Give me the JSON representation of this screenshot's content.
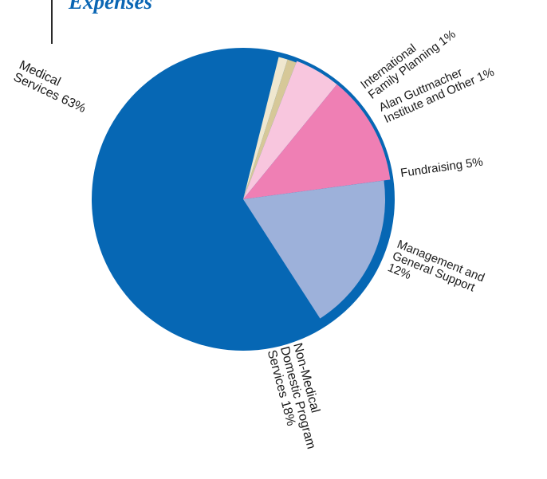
{
  "heading": "Expenses",
  "chart_data": {
    "type": "pie",
    "title": "Expenses",
    "unit": "%",
    "slices": [
      {
        "id": "medical",
        "lines": [
          "Medical",
          "Services 63%"
        ],
        "value": 63,
        "color": "#0667b4"
      },
      {
        "id": "nonmedical",
        "lines": [
          "Non-Medical",
          "Domestic Program",
          "Services 18%"
        ],
        "value": 18,
        "color": "#9db1da"
      },
      {
        "id": "management",
        "lines": [
          "Management and",
          "General Support",
          "12%"
        ],
        "value": 12,
        "color": "#ef7fb4"
      },
      {
        "id": "fundraising",
        "lines": [
          "Fundraising  5%"
        ],
        "value": 5,
        "color": "#f8c6de"
      },
      {
        "id": "guttmacher",
        "lines": [
          "Alan Guttmacher",
          "Institute and Other  1%"
        ],
        "value": 1,
        "color": "#d6c898"
      },
      {
        "id": "family",
        "lines": [
          "International",
          "Family Planning  1%"
        ],
        "value": 1,
        "color": "#efe7cf"
      }
    ]
  }
}
